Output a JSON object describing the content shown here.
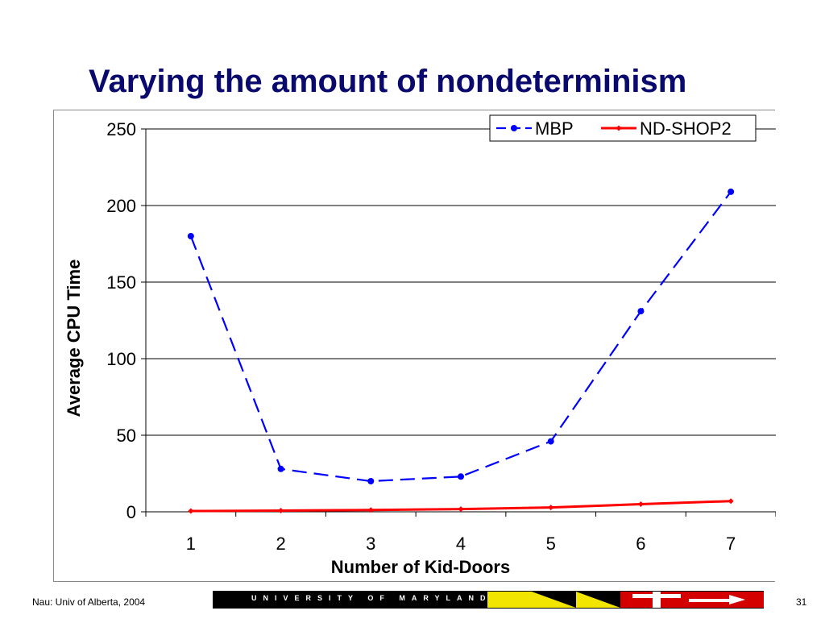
{
  "slide": {
    "title": "Varying the amount of nondeterminism",
    "footer_left": "Nau: Univ of Alberta, 2004",
    "page_number": "31",
    "banner_text": "UNIVERSITY OF MARYLAND"
  },
  "colors": {
    "title": "#0a0a6e",
    "mbp": "#0000ff",
    "nd_shop2": "#ff0000",
    "gridline": "#000000"
  },
  "chart_data": {
    "type": "line",
    "title": "",
    "xlabel": "Number of Kid-Doors",
    "ylabel": "Average CPU Time",
    "categories": [
      "1",
      "2",
      "3",
      "4",
      "5",
      "6",
      "7"
    ],
    "y_ticks": [
      "0",
      "50",
      "100",
      "150",
      "200",
      "250"
    ],
    "ylim": [
      0,
      250
    ],
    "grid": true,
    "legend_position": "top-right",
    "series": [
      {
        "name": "MBP",
        "values": [
          180,
          28,
          20,
          23,
          46,
          131,
          209
        ],
        "line_style": "dashed",
        "marker": "circle",
        "color": "#0000ff"
      },
      {
        "name": "ND-SHOP2",
        "values": [
          0.5,
          0.8,
          1.2,
          1.8,
          2.8,
          5,
          7
        ],
        "line_style": "solid",
        "marker": "diamond",
        "color": "#ff0000"
      }
    ]
  }
}
